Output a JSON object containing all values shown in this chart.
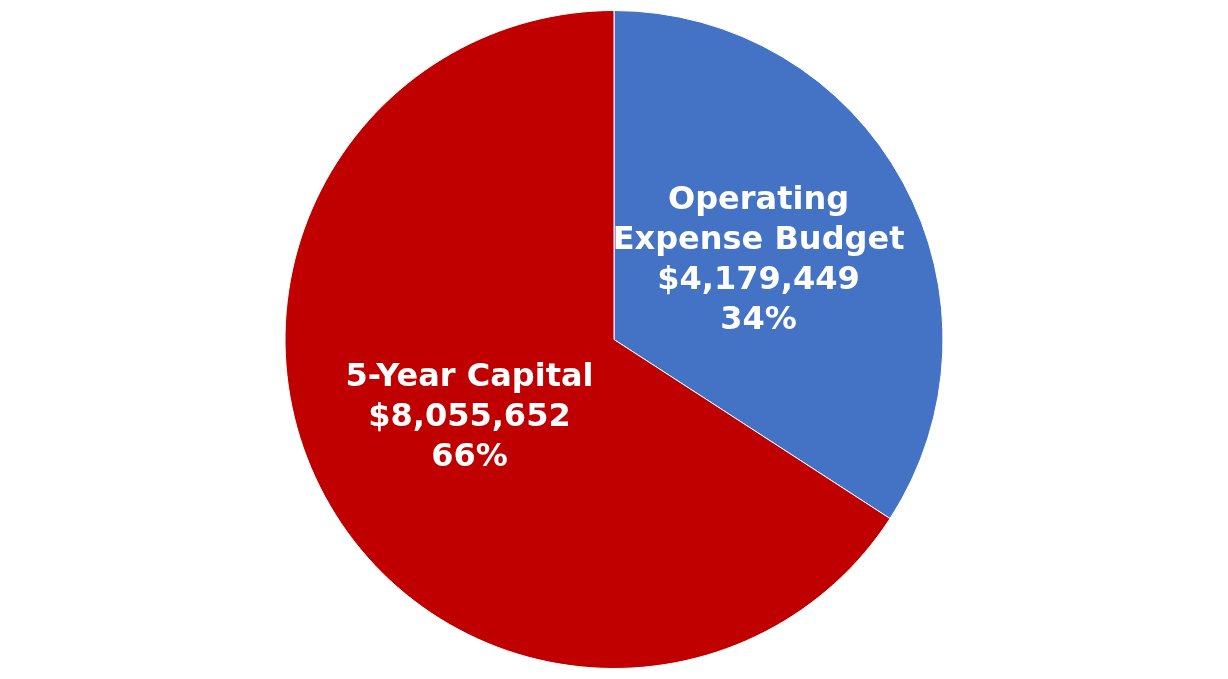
{
  "chart_data": {
    "type": "pie",
    "categories": [
      "Operating Expense Budget",
      "5-Year Capital"
    ],
    "values": [
      4179449,
      8055652
    ],
    "colors": [
      "#4472c4",
      "#c00000"
    ],
    "value_labels": [
      "$4,179,449\n34%",
      "$8,055,652\n66%"
    ],
    "legend": false
  }
}
